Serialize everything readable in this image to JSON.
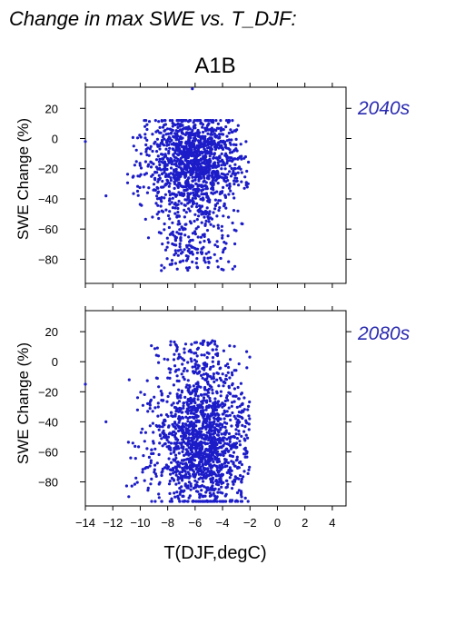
{
  "title": "Change in max SWE vs. T_DJF:",
  "scenario": "A1B",
  "colors": {
    "points": "#1c1cc8",
    "period_label": "#2a2ab0",
    "axis": "#000000"
  },
  "chart_data": [
    {
      "type": "scatter",
      "period_label": "2040s",
      "ylabel": "SWE Change (%)",
      "xlim": [
        -14,
        5
      ],
      "ylim": [
        -96,
        34
      ],
      "x_ticks": [
        -14,
        -12,
        -10,
        -8,
        -6,
        -4,
        -2,
        0,
        2,
        4
      ],
      "y_ticks": [
        20,
        0,
        -20,
        -40,
        -60,
        -80
      ],
      "y_tick_labels": [
        "20",
        "0",
        "−20",
        "−40",
        "−60",
        "−80"
      ],
      "cloud": {
        "x_range": [
          -11,
          -2
        ],
        "x_center": -6,
        "y_range": [
          -88,
          12
        ],
        "y_mode": -15,
        "n_points": 1500
      },
      "outliers": [
        [
          -6.2,
          33
        ],
        [
          -14,
          -2
        ],
        [
          -12.5,
          -38
        ],
        [
          -10.5,
          -25
        ]
      ]
    },
    {
      "type": "scatter",
      "period_label": "2080s",
      "ylabel": "SWE Change (%)",
      "xlabel": "T(DJF,degC)",
      "xlim": [
        -14,
        5
      ],
      "ylim": [
        -96,
        34
      ],
      "x_ticks": [
        -14,
        -12,
        -10,
        -8,
        -6,
        -4,
        -2,
        0,
        2,
        4
      ],
      "x_tick_labels": [
        "−14",
        "−12",
        "−10",
        "−8",
        "−6",
        "−4",
        "−2",
        "0",
        "2",
        "4"
      ],
      "y_ticks": [
        20,
        0,
        -20,
        -40,
        -60,
        -80
      ],
      "y_tick_labels": [
        "20",
        "0",
        "−20",
        "−40",
        "−60",
        "−80"
      ],
      "cloud": {
        "x_range": [
          -11,
          -2
        ],
        "x_center": -5.5,
        "y_range": [
          -93,
          14
        ],
        "y_mode": -55,
        "n_points": 1600
      },
      "outliers": [
        [
          -14,
          -15
        ],
        [
          -12.5,
          -40
        ],
        [
          -10.8,
          -12
        ]
      ]
    }
  ]
}
